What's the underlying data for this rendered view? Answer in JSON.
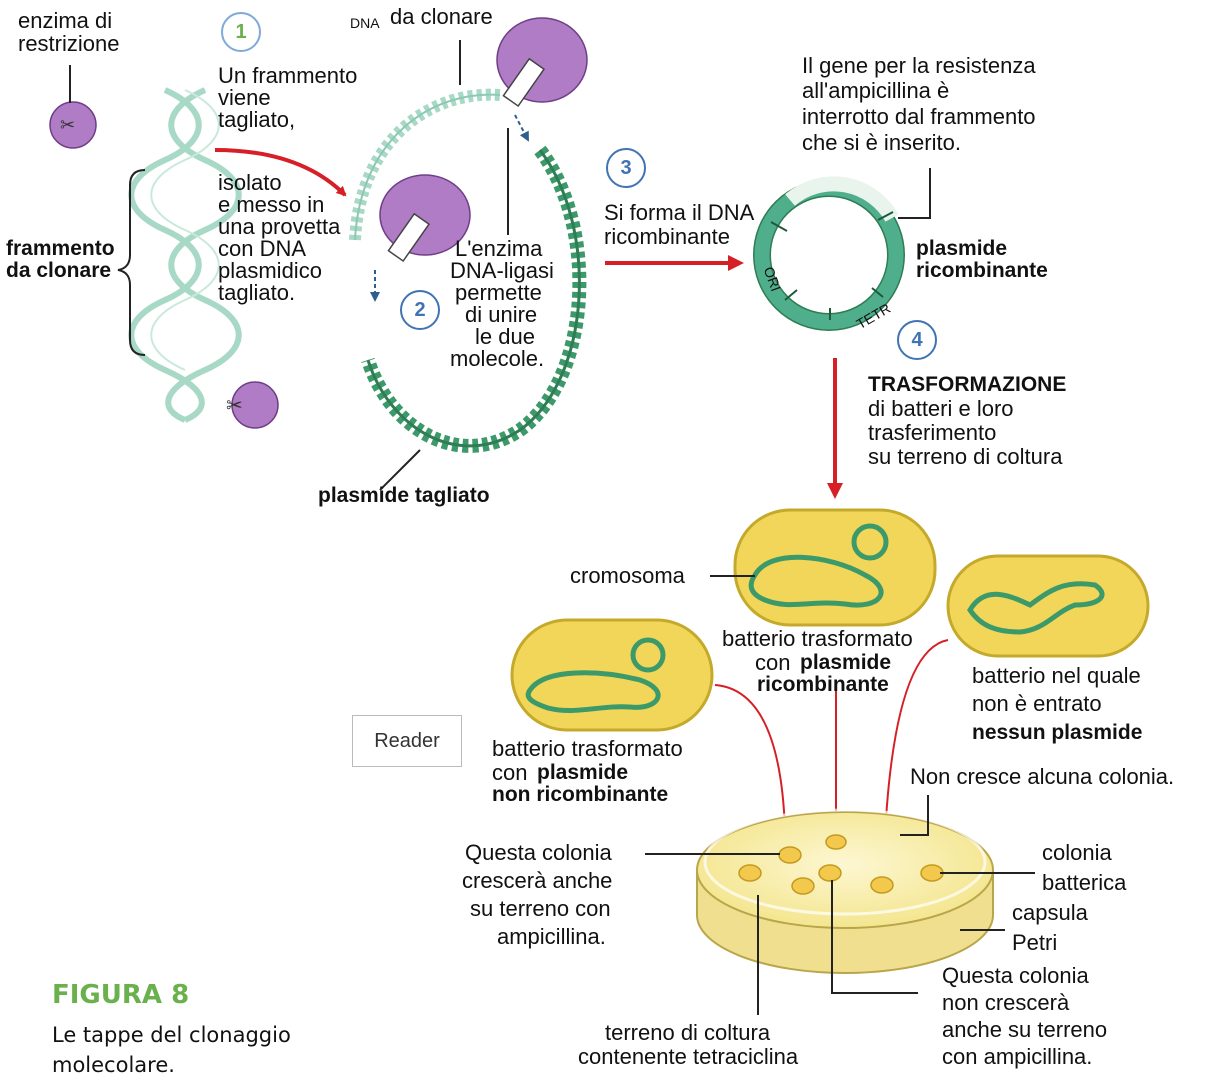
{
  "labels": {
    "enzyme_line1": "enzima di",
    "enzyme_line2": "restrizione",
    "fragment_clone_line1": "frammento",
    "fragment_clone_line2": "da clonare",
    "dna_prefix": "DNA",
    "dna_to_clone": "da clonare",
    "step1_text": [
      "Un frammento",
      "viene",
      "tagliato,"
    ],
    "step1b_text": [
      "isolato",
      "e messo in",
      "una provetta",
      "con DNA",
      "plasmidico",
      "tagliato."
    ],
    "ligase_text": [
      "L'enzima",
      "DNA-ligasi",
      "permette",
      "di unire",
      "le due",
      "molecole."
    ],
    "cut_plasmid": "plasmide tagliato",
    "step3_line1": "Si forma il DNA",
    "step3_line2": "ricombinante",
    "gene_text": [
      "Il gene per la resistenza",
      "all'ampicillina è",
      "interrotto dal frammento",
      "che si è inserito."
    ],
    "recomb_plasmid_line1": "plasmide",
    "recomb_plasmid_line2": "ricombinante",
    "ori": "ORI",
    "tetr": "TETR",
    "transformation_title": "TRASFORMAZIONE",
    "transformation_text": [
      "di batteri e loro",
      "trasferimento",
      "su terreno di coltura"
    ],
    "chromosome": "cromosoma",
    "bact_recomb_line1": "batterio trasformato",
    "bact_recomb_line2_prefix": "con",
    "bact_recomb_line2_bold": "plasmide",
    "bact_recomb_line3_bold": "ricombinante",
    "bact_none_line1": "batterio nel quale",
    "bact_none_line2": "non è entrato",
    "bact_none_line3_bold": "nessun plasmide",
    "bact_nonrecomb_line1": "batterio trasformato",
    "bact_nonrecomb_line2_prefix": "con",
    "bact_nonrecomb_line2_bold": "plasmide",
    "bact_nonrecomb_line3_bold": "non ricombinante",
    "reader": "Reader",
    "no_colony": "Non cresce alcuna colonia.",
    "colony_grows": [
      "Questa colonia",
      "crescerà anche",
      "su terreno con",
      "ampicillina."
    ],
    "colony_label": [
      "colonia",
      "batterica"
    ],
    "petri_label": [
      "capsula",
      "Petri"
    ],
    "colony_not_grow": [
      "Questa colonia",
      "non crescerà",
      "anche su terreno",
      "con ampicillina."
    ],
    "medium": [
      "terreno di coltura",
      "contenente tetraciclina"
    ],
    "step_numbers": [
      "1",
      "2",
      "3",
      "4"
    ]
  },
  "figure": {
    "title": "FIGURA 8",
    "caption": "Le tappe del clonaggio molecolare."
  },
  "colors": {
    "dna_light": "#a8d8c6",
    "dna_dark": "#3c9a6a",
    "enzyme": "#b07cc6",
    "arrow": "#d61f26",
    "bacterium": "#f2d65a",
    "petri": "#f4e79a",
    "step_circle": "#3f73b3",
    "figure_green": "#6ab04c"
  }
}
